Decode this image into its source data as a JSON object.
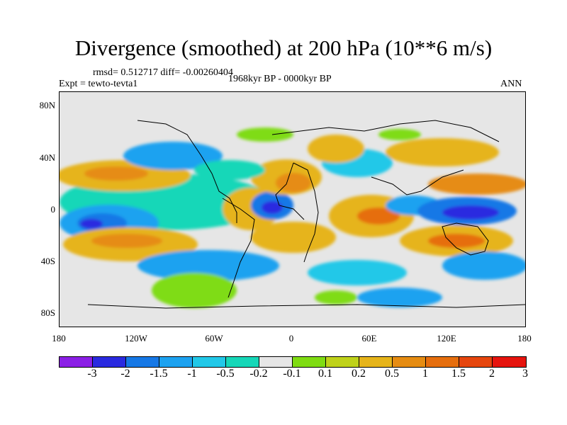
{
  "title": "Divergence (smoothed) at 200 hPa (10**6 m/s)",
  "stats_line": "rmsd= 0.512717 diff= -0.00260404",
  "experiment": "Expt = tewto-tevta1",
  "period": "1968kyr BP - 0000kyr BP",
  "season": "ANN",
  "y_ticks": [
    "80N",
    "40N",
    "0",
    "40S",
    "80S"
  ],
  "x_ticks": [
    "180",
    "120W",
    "60W",
    "0",
    "60E",
    "120E",
    "180"
  ],
  "colorbar": {
    "colors": [
      "#8b1fe6",
      "#2a2ae0",
      "#1678e6",
      "#1da2f0",
      "#22c8e8",
      "#16d7b8",
      "#e6e6e6",
      "#7fdc12",
      "#bfd21a",
      "#e6b41a",
      "#e68c12",
      "#e66e0e",
      "#e6460e",
      "#e6140e"
    ],
    "labels": [
      "-3",
      "-2",
      "-1.5",
      "-1",
      "-0.5",
      "-0.2",
      "-0.1",
      "0.1",
      "0.2",
      "0.5",
      "1",
      "1.5",
      "2",
      "3"
    ]
  }
}
